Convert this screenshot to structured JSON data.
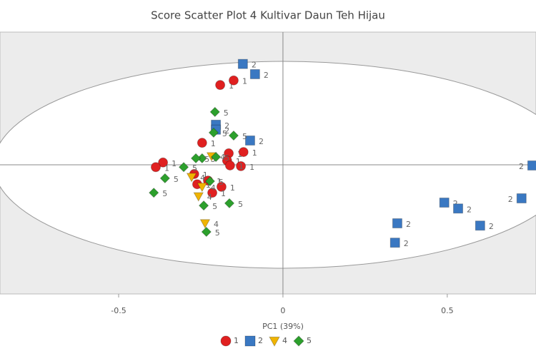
{
  "chart_data": {
    "type": "scatter",
    "title": "Score Scatter Plot 4 Kultivar Daun Teh Hijau",
    "x_label": "PC1 (39%)",
    "xlim": [
      -0.861,
      0.77
    ],
    "ylim": [
      -0.393,
      0.404
    ],
    "xticks": [
      -0.5,
      0,
      0.5
    ],
    "legend": "bottom",
    "series": [
      {
        "name": "1",
        "color": "#e02020",
        "x": [
          -0.191,
          -0.15,
          -0.246,
          -0.165,
          -0.12,
          -0.365,
          -0.387,
          -0.17,
          -0.128,
          -0.161,
          -0.27,
          -0.228,
          -0.187,
          -0.215,
          -0.261
        ],
        "values": [
          0.243,
          0.257,
          0.067,
          0.035,
          0.039,
          0.007,
          -0.007,
          0.013,
          -0.004,
          -0.002,
          -0.028,
          -0.048,
          -0.067,
          -0.085,
          -0.059
        ]
      },
      {
        "name": "2",
        "color": "#3a78c2",
        "x": [
          -0.122,
          -0.085,
          -0.204,
          -0.204,
          -0.1,
          0.759,
          0.726,
          0.491,
          0.533,
          0.6,
          0.348,
          0.341
        ],
        "values": [
          0.307,
          0.276,
          0.122,
          0.107,
          0.074,
          -0.002,
          -0.102,
          -0.115,
          -0.133,
          -0.185,
          -0.178,
          -0.237
        ]
      },
      {
        "name": "4",
        "color": "#f0b400",
        "x": [
          -0.217,
          -0.278,
          -0.246,
          -0.257,
          -0.237
        ],
        "values": [
          0.026,
          -0.037,
          -0.067,
          -0.096,
          -0.178
        ]
      },
      {
        "name": "5",
        "color": "#2ca02c",
        "x": [
          -0.207,
          -0.15,
          -0.211,
          -0.246,
          -0.302,
          -0.265,
          -0.359,
          -0.393,
          -0.222,
          -0.241,
          -0.163,
          -0.233,
          -0.204
        ],
        "values": [
          0.161,
          0.089,
          0.098,
          0.02,
          -0.007,
          0.02,
          -0.041,
          -0.085,
          -0.05,
          -0.124,
          -0.117,
          -0.204,
          0.024
        ]
      }
    ]
  }
}
